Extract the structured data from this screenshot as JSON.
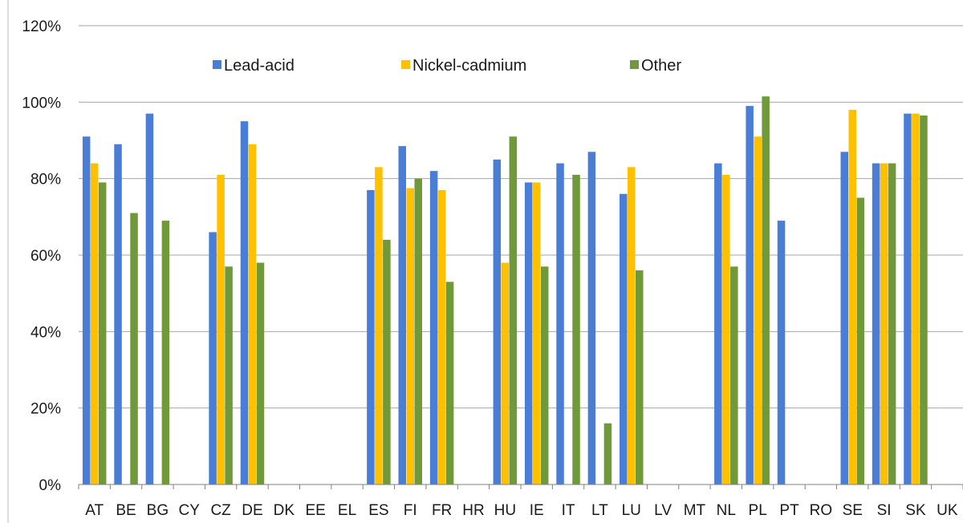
{
  "chart_data": {
    "type": "bar",
    "categories": [
      "AT",
      "BE",
      "BG",
      "CY",
      "CZ",
      "DE",
      "DK",
      "EE",
      "EL",
      "ES",
      "FI",
      "FR",
      "HR",
      "HU",
      "IE",
      "IT",
      "LT",
      "LU",
      "LV",
      "MT",
      "NL",
      "PL",
      "PT",
      "RO",
      "SE",
      "SI",
      "SK",
      "UK"
    ],
    "series": [
      {
        "name": "Lead-acid",
        "color": "#4a7ed6",
        "values": [
          91,
          89,
          97,
          null,
          66,
          95,
          null,
          null,
          null,
          77,
          88.5,
          82,
          null,
          85,
          79,
          84,
          87,
          76,
          null,
          null,
          84,
          99,
          69,
          null,
          87,
          84,
          97,
          null
        ]
      },
      {
        "name": "Nickel-cadmium",
        "color": "#ffc000",
        "values": [
          84,
          null,
          null,
          null,
          81,
          89,
          null,
          null,
          null,
          83,
          77.5,
          77,
          null,
          58,
          79,
          null,
          null,
          83,
          null,
          null,
          81,
          91,
          null,
          null,
          98,
          84,
          97,
          null
        ]
      },
      {
        "name": "Other",
        "color": "#70993a",
        "values": [
          79,
          71,
          69,
          null,
          57,
          58,
          null,
          null,
          null,
          64,
          80,
          53,
          null,
          91,
          57,
          81,
          16,
          56,
          null,
          null,
          57,
          101.5,
          null,
          null,
          75,
          84,
          96.5,
          null
        ]
      }
    ],
    "yticks": [
      "0%",
      "20%",
      "40%",
      "60%",
      "80%",
      "100%",
      "120%"
    ],
    "ylim": [
      0,
      120
    ],
    "grid": true,
    "legend_position": "top-left inside plot"
  }
}
